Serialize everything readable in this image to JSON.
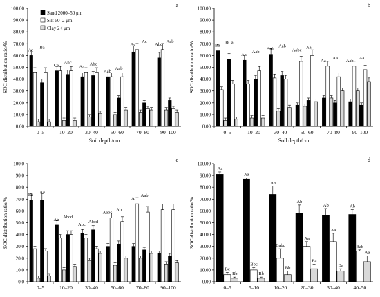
{
  "figure": {
    "legend": [
      {
        "label": "Sand 2000–50 μm",
        "fill": "#000000"
      },
      {
        "label": "Silt  50–2 μm",
        "fill": "#ffffff"
      },
      {
        "label": "Clay  2< μm",
        "fill": "#d9d9d9"
      }
    ]
  },
  "chart_data": [
    {
      "panel": "a",
      "type": "bar",
      "xlabel": "Soil depth/cm",
      "ylabel": "SOC distribution ratio/%",
      "ylim": [
        0,
        100
      ],
      "yticks": [
        "0.00",
        "10.00",
        "20.00",
        "30.00",
        "40.00",
        "50.00",
        "60.00",
        "70.00",
        "80.00",
        "90.00",
        "100.00"
      ],
      "categories": [
        "0–5",
        "10–20",
        "30–40",
        "50–60",
        "70–80",
        "90–100"
      ],
      "series": [
        {
          "name": "Sand 2000–50 μm",
          "values": [
            [
              60,
              37
            ],
            [
              47,
              44
            ],
            [
              42,
              43
            ],
            [
              42,
              24
            ],
            [
              63,
              20
            ],
            [
              58,
              22
            ]
          ],
          "errors": [
            [
              0,
              0
            ],
            [
              0,
              0
            ],
            [
              0,
              0
            ],
            [
              0,
              0
            ],
            [
              0,
              0
            ],
            [
              0,
              0
            ]
          ]
        },
        {
          "name": "Silt  50–2 μm",
          "values": [
            [
              46,
              46
            ],
            [
              47,
              47
            ],
            [
              46,
              46
            ],
            [
              42,
              42
            ],
            [
              65,
              15
            ],
            [
              65,
              15
            ]
          ],
          "errors": [
            [
              0,
              0
            ],
            [
              0,
              0
            ],
            [
              0,
              0
            ],
            [
              0,
              0
            ],
            [
              0,
              0
            ],
            [
              0,
              0
            ]
          ]
        },
        {
          "name": "Clay  2< μm",
          "values": [
            [
              4,
              4
            ],
            [
              5,
              5
            ],
            [
              8,
              11
            ],
            [
              10,
              14
            ],
            [
              12,
              14
            ],
            [
              14,
              12
            ]
          ],
          "errors": [
            [
              0,
              0
            ],
            [
              0,
              0
            ],
            [
              0,
              0
            ],
            [
              0,
              0
            ],
            [
              0,
              0
            ],
            [
              0,
              0
            ]
          ]
        }
      ],
      "labels": [
        "Ac",
        "Ba",
        "Ca",
        "Abc",
        "Aa",
        "Abc",
        "Aab",
        "Aab",
        "Ac",
        "Ac",
        "Abc",
        "Aab"
      ]
    },
    {
      "panel": "b",
      "type": "bar",
      "xlabel": "Soil depth/cm",
      "ylabel": "SOC distribution ratio/%",
      "ylim": [
        0,
        100
      ],
      "yticks": [
        "0.00",
        "10.00",
        "20.00",
        "30.00",
        "40.00",
        "50.00",
        "60.00",
        "70.00",
        "80.00",
        "90.00",
        "100.00"
      ],
      "categories": [
        "0–5",
        "10–20",
        "30–40",
        "50–60",
        "70–80",
        "90–100"
      ],
      "series": [
        {
          "name": "Sand 2000–50 μm",
          "values": [
            [
              64,
              57
            ],
            [
              56,
              40
            ],
            [
              61,
              43
            ],
            [
              18,
              22
            ],
            [
              24,
              20
            ],
            [
              21,
              18
            ]
          ],
          "errors": [
            [
              0,
              0
            ],
            [
              0,
              0
            ],
            [
              0,
              0
            ],
            [
              0,
              0
            ],
            [
              0,
              0
            ],
            [
              0,
              0
            ]
          ]
        },
        {
          "name": "Silt  50–2 μm",
          "values": [
            [
              31,
              36
            ],
            [
              36,
              47
            ],
            [
              41,
              40
            ],
            [
              55,
              60
            ],
            [
              51,
              42
            ],
            [
              51,
              48
            ]
          ],
          "errors": [
            [
              0,
              0
            ],
            [
              0,
              0
            ],
            [
              0,
              0
            ],
            [
              0,
              0
            ],
            [
              0,
              0
            ],
            [
              0,
              0
            ]
          ]
        },
        {
          "name": "Clay  2< μm",
          "values": [
            [
              5,
              6
            ],
            [
              7,
              7
            ],
            [
              13,
              16
            ],
            [
              17,
              21
            ],
            [
              24,
              30
            ],
            [
              30,
              38
            ]
          ],
          "errors": [
            [
              0,
              0
            ],
            [
              0,
              0
            ],
            [
              0,
              0
            ],
            [
              0,
              0
            ],
            [
              0,
              0
            ],
            [
              0,
              0
            ]
          ]
        }
      ],
      "labels": [
        "Ba",
        "BCa",
        "Aa",
        "Aab",
        "Aab",
        "Aab",
        "Aabc",
        "Aa",
        "Aa",
        "Aa",
        "Aab",
        "Aa"
      ]
    },
    {
      "panel": "c",
      "type": "bar",
      "xlabel": "Soil depth/cm",
      "ylabel": "SOC distribution ratio/%",
      "ylim": [
        0,
        100
      ],
      "yticks": [
        "0.0",
        "10.0",
        "20.0",
        "30.0",
        "40.0",
        "50.0",
        "60.0",
        "70.0",
        "80.0",
        "90.0",
        "100.0"
      ],
      "categories": [
        "0–5",
        "10–20",
        "30–40",
        "50–60",
        "70–80",
        "90–100"
      ],
      "series": [
        {
          "name": "Sand 2000–50 μm",
          "values": [
            [
              69,
              69
            ],
            [
              48,
              40
            ],
            [
              41,
              44
            ],
            [
              30,
              32
            ],
            [
              30,
              27
            ],
            [
              24,
              22
            ]
          ],
          "errors": [
            [
              0,
              0
            ],
            [
              0,
              0
            ],
            [
              0,
              0
            ],
            [
              0,
              0
            ],
            [
              0,
              0
            ],
            [
              0,
              0
            ]
          ]
        },
        {
          "name": "Silt  50–2 μm",
          "values": [
            [
              28,
              26
            ],
            [
              37,
              40
            ],
            [
              37,
              28
            ],
            [
              54,
              51
            ],
            [
              66,
              59
            ],
            [
              61,
              61
            ]
          ],
          "errors": [
            [
              0,
              0
            ],
            [
              0,
              0
            ],
            [
              0,
              0
            ],
            [
              0,
              0
            ],
            [
              0,
              0
            ],
            [
              0,
              0
            ]
          ]
        },
        {
          "name": "Clay  2< μm",
          "values": [
            [
              3,
              5
            ],
            [
              10,
              13
            ],
            [
              18,
              24
            ],
            [
              14,
              20
            ],
            [
              20,
              24
            ],
            [
              15,
              16
            ]
          ],
          "errors": [
            [
              0,
              0
            ],
            [
              0,
              0
            ],
            [
              0,
              0
            ],
            [
              0,
              0
            ],
            [
              0,
              0
            ],
            [
              0,
              0
            ]
          ]
        }
      ],
      "labels": [
        "Ba",
        "Aa",
        "Ab",
        "Abcd",
        "Abc",
        "Abcd",
        "Aabc",
        "Ab",
        "A",
        "Aab"
      ]
    },
    {
      "panel": "d",
      "type": "bar",
      "xlabel": "Soil depth/cm",
      "ylabel": "SOC distribution ratio/%",
      "ylim": [
        0,
        100
      ],
      "yticks": [
        "0.00",
        "10.00",
        "20.00",
        "30.00",
        "40.00",
        "50.00",
        "60.00",
        "70.00",
        "80.00",
        "90.00",
        "100.00"
      ],
      "categories": [
        "0–5",
        "5–10",
        "10–20",
        "20–30",
        "30–40",
        "40–50"
      ],
      "series": [
        {
          "name": "Sand 2000–50 μm",
          "values": [
            91,
            87,
            74,
            58,
            56,
            57
          ],
          "errors": [
            2,
            1,
            7,
            7,
            6,
            4
          ]
        },
        {
          "name": "Silt  50–2 μm",
          "values": [
            6,
            10,
            20,
            30,
            34,
            26
          ],
          "errors": [
            2,
            2,
            8,
            4,
            7,
            1
          ]
        },
        {
          "name": "Clay  2< μm",
          "values": [
            3,
            3,
            6,
            11,
            9,
            17
          ],
          "errors": [
            1,
            1,
            3,
            4,
            2,
            5
          ]
        }
      ],
      "labels": [
        [
          "Aa",
          "Bc",
          "Bb"
        ],
        [
          "Aa",
          "Bbc",
          "Bb"
        ],
        [
          "Aa",
          "Babc",
          "Bb"
        ],
        [
          "Ab",
          "Aa",
          "Ba"
        ],
        [
          "Ab",
          "Aa",
          "Ba"
        ],
        [
          "Ab",
          "Bab",
          "Aa"
        ]
      ]
    }
  ]
}
